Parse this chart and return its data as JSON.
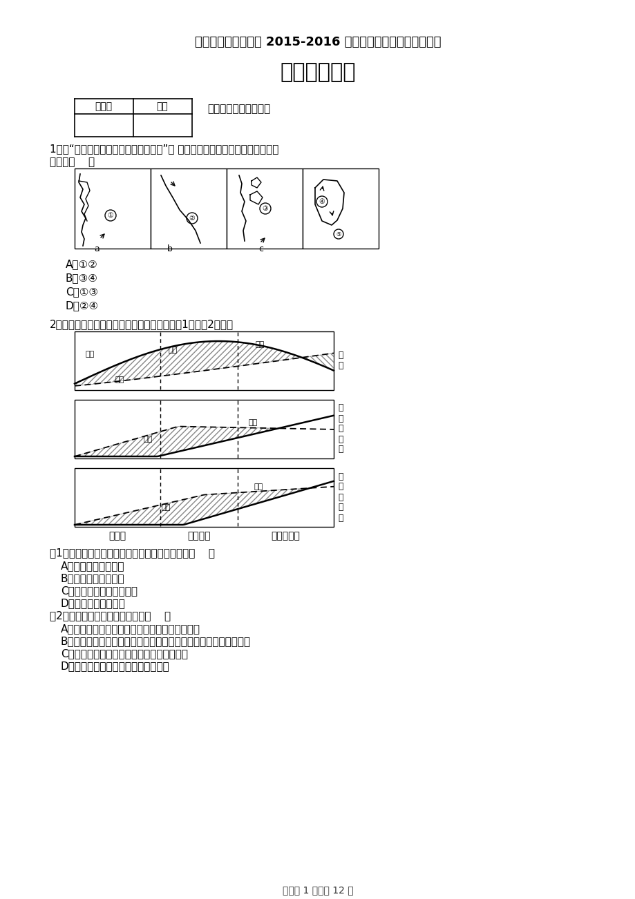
{
  "bg_color": "#ffffff",
  "title1": "吉林市第一中学中学 2015-2016 下学期期末试卷高二地理试题",
  "title2": "高二地理试题",
  "section1": "一、单项选择（注释）",
  "q1_text1": "1、读“世界四大渔场与洋流分布示意图”， 图中序号所示的大渔场中，位于太平",
  "q1_text2": "洋的有（    ）",
  "q1_options": [
    "A．①②",
    "B．③④",
    "C．①③",
    "D．②④"
  ],
  "q2_intro": "2、下图是电视机产品生产周期模式图，回答（1）～（2）题。",
  "x_labels": [
    "新产品",
    "成熟产品",
    "标准化产品"
  ],
  "q2_sub1": "（1）在电视机生产周期中，该产业不断转移表明（    ）",
  "q2_sub1_options": [
    "A．交通通信日益重要",
    "B．发达国家转移污染",
    "C．发展中国家劳动力雇价",
    "D．技术的影响在加强"
  ],
  "q2_sub2": "（2）与图中内容不相符的表述是（    ）",
  "q2_sub2_options": [
    "A．新产品阶段产品生产与消费地主要集中在美国",
    "B．成熟产品阶段该产业实施转移，其主要投资对象为其他发达国家",
    "C．标准化产品阶段该产业向发展中国家转移",
    "D．发达国家的生产量总是大于消费量"
  ],
  "footer": "试卷第 1 页，总 12 页"
}
